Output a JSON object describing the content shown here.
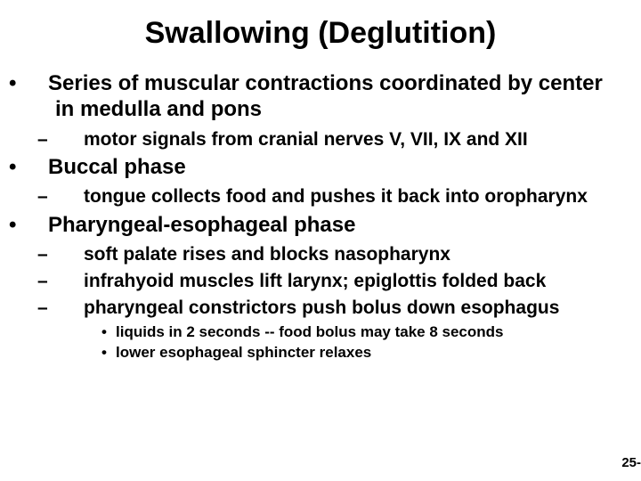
{
  "title": "Swallowing (Deglutition)",
  "items": [
    {
      "level": 1,
      "text": "Series of muscular contractions coordinated by center in medulla and pons"
    },
    {
      "level": 2,
      "text": "motor signals from cranial nerves V, VII, IX and XII"
    },
    {
      "level": 1,
      "text": "Buccal phase"
    },
    {
      "level": 2,
      "text": "tongue collects food and pushes it back into oropharynx"
    },
    {
      "level": 1,
      "text": "Pharyngeal-esophageal phase"
    },
    {
      "level": 2,
      "text": "soft palate rises and blocks nasopharynx"
    },
    {
      "level": 2,
      "text": "infrahyoid muscles lift larynx; epiglottis folded back"
    },
    {
      "level": 2,
      "text": "pharyngeal constrictors push bolus down esophagus"
    },
    {
      "level": 3,
      "text": "liquids in 2 seconds -- food bolus may take 8 seconds"
    },
    {
      "level": 3,
      "text": "lower esophageal sphincter relaxes"
    }
  ],
  "pageNumber": "25-",
  "colors": {
    "background": "#ffffff",
    "text": "#000000"
  },
  "fonts": {
    "title_size": 34,
    "l1_size": 24,
    "l2_size": 21,
    "l3_size": 17,
    "weight": "bold"
  }
}
